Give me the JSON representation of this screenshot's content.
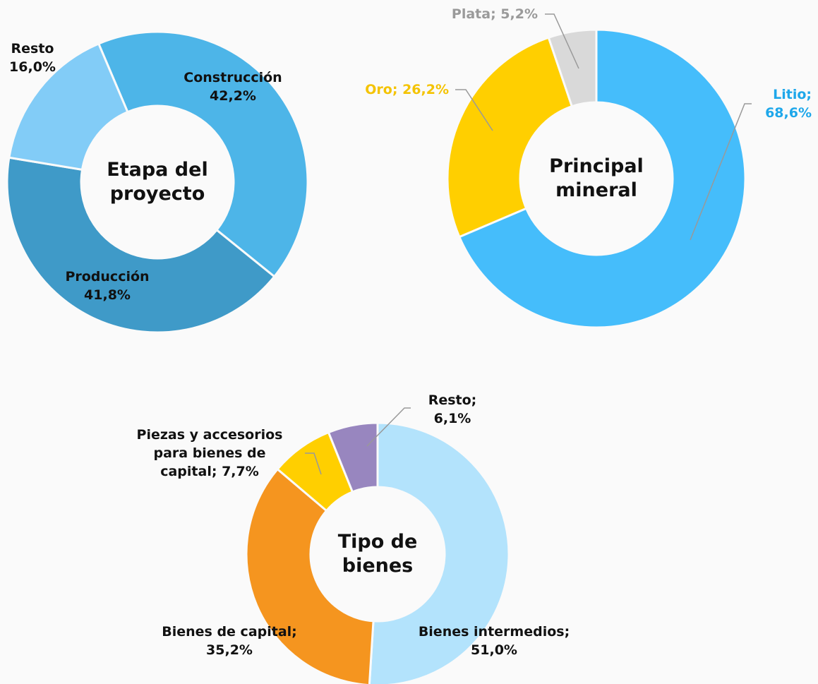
{
  "chart_data": [
    {
      "type": "pie",
      "title": "Etapa del proyecto",
      "categories": [
        "Construcción",
        "Producción",
        "Resto"
      ],
      "values": [
        42.2,
        41.8,
        16.0
      ],
      "value_labels": [
        "42,2%",
        "41,8%",
        "16,0%"
      ],
      "colors": [
        "#4db5e8",
        "#3f9ac8",
        "#82ccf7"
      ],
      "label_colors": [
        "#111111",
        "#111111",
        "#111111"
      ]
    },
    {
      "type": "pie",
      "title": "Principal mineral",
      "categories": [
        "Litio;",
        "Oro;",
        "Plata;"
      ],
      "values": [
        68.6,
        26.2,
        5.2
      ],
      "value_labels": [
        "68,6%",
        "26,2%",
        "5,2%"
      ],
      "colors": [
        "#45bdfb",
        "#ffcf00",
        "#d9d9d9"
      ],
      "label_colors": [
        "#1ea7ea",
        "#f4c300",
        "#9a9a9a"
      ]
    },
    {
      "type": "pie",
      "title": "Tipo de bienes",
      "categories": [
        "Bienes intermedios;",
        "Bienes de capital;",
        "Piezas y accesorios para bienes de capital;",
        "Resto;"
      ],
      "values": [
        51.0,
        35.2,
        7.7,
        6.1
      ],
      "value_labels": [
        "51,0%",
        "35,2%",
        "7,7%",
        "6,1%"
      ],
      "colors": [
        "#b3e3fc",
        "#f5951f",
        "#ffcf00",
        "#9886bf"
      ],
      "label_colors": [
        "#111111",
        "#111111",
        "#111111",
        "#111111"
      ]
    }
  ]
}
